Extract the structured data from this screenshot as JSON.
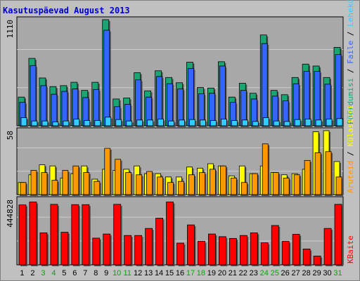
{
  "header": {
    "title_prefix": "Kasutuspäevad",
    "month": "August",
    "year": "2013"
  },
  "colors": {
    "frame_bg": "#c0c0c0",
    "panel_bg": "#a8a8a8",
    "grid": "#cccccc",
    "hits": "#1aa673",
    "files": "#3366ff",
    "pages": "#33ccff",
    "visits": "#ffff00",
    "sites": "#ff9900",
    "kbytes": "#ff0000",
    "weekend_label": "#00aa00",
    "weekday_label": "#000000"
  },
  "chart_data": [
    {
      "type": "bar",
      "panel": "hits-files-pages",
      "y_max_label": "1110",
      "ylim": [
        0,
        1110
      ],
      "right_labels": [
        {
          "text": "Pöördumisi",
          "color": "#1aa673"
        },
        {
          "text": "Faile",
          "color": "#3366ff"
        },
        {
          "text": "Lehekülgi",
          "color": "#33ccff"
        }
      ],
      "categories": [
        "1",
        "2",
        "3",
        "4",
        "5",
        "6",
        "7",
        "8",
        "9",
        "10",
        "11",
        "12",
        "13",
        "14",
        "15",
        "16",
        "17",
        "18",
        "19",
        "20",
        "21",
        "22",
        "23",
        "24",
        "25",
        "26",
        "27",
        "28",
        "29",
        "30",
        "31"
      ],
      "series": [
        {
          "name": "Pöördumisi",
          "values": [
            300,
            705,
            500,
            410,
            420,
            455,
            370,
            455,
            1110,
            280,
            290,
            555,
            365,
            575,
            505,
            450,
            665,
            400,
            395,
            670,
            300,
            445,
            340,
            950,
            370,
            325,
            505,
            645,
            625,
            505,
            820
          ]
        },
        {
          "name": "Faile",
          "values": [
            245,
            630,
            420,
            330,
            360,
            385,
            295,
            380,
            1000,
            200,
            225,
            480,
            300,
            515,
            440,
            385,
            600,
            335,
            340,
            625,
            245,
            370,
            280,
            860,
            310,
            260,
            440,
            570,
            570,
            435,
            745
          ]
        },
        {
          "name": "Lehekülgi",
          "values": [
            85,
            50,
            50,
            40,
            50,
            70,
            55,
            55,
            90,
            65,
            50,
            60,
            60,
            70,
            50,
            60,
            65,
            60,
            55,
            70,
            55,
            60,
            45,
            85,
            50,
            45,
            65,
            70,
            60,
            70,
            75
          ]
        }
      ]
    },
    {
      "type": "bar",
      "panel": "visits-sites",
      "y_max_label": "58",
      "ylim": [
        0,
        58
      ],
      "right_labels": [
        {
          "text": "Aruteid",
          "color": "#ff9900"
        },
        {
          "text": "Külastusi",
          "color": "#ffff00"
        }
      ],
      "categories": [
        "1",
        "2",
        "3",
        "4",
        "5",
        "6",
        "7",
        "8",
        "9",
        "10",
        "11",
        "12",
        "13",
        "14",
        "15",
        "16",
        "17",
        "18",
        "19",
        "20",
        "21",
        "22",
        "23",
        "24",
        "25",
        "26",
        "27",
        "28",
        "29",
        "30",
        "31"
      ],
      "series": [
        {
          "name": "Külastusi",
          "values": [
            11,
            18,
            27,
            26,
            15,
            19,
            26,
            14,
            23,
            22,
            23,
            26,
            19,
            19,
            16,
            16,
            25,
            24,
            28,
            26,
            17,
            26,
            19,
            26,
            20,
            18,
            19,
            23,
            57,
            58,
            30
          ]
        },
        {
          "name": "Aruteid",
          "values": [
            11,
            22,
            20,
            13,
            22,
            26,
            20,
            12,
            42,
            32,
            20,
            18,
            21,
            16,
            11,
            12,
            18,
            20,
            23,
            26,
            15,
            11,
            19,
            46,
            20,
            15,
            18,
            31,
            38,
            39,
            16
          ]
        }
      ]
    },
    {
      "type": "bar",
      "panel": "kbytes",
      "y_max_label": "444828",
      "ylim": [
        0,
        444828
      ],
      "right_labels": [
        {
          "text": "KBaite",
          "color": "#ff0000"
        }
      ],
      "categories": [
        "1",
        "2",
        "3",
        "4",
        "5",
        "6",
        "7",
        "8",
        "9",
        "10",
        "11",
        "12",
        "13",
        "14",
        "15",
        "16",
        "17",
        "18",
        "19",
        "20",
        "21",
        "22",
        "23",
        "24",
        "25",
        "26",
        "27",
        "28",
        "29",
        "30",
        "31"
      ],
      "series": [
        {
          "name": "KBaite",
          "values": [
            408000,
            428000,
            218000,
            412000,
            222000,
            410000,
            410000,
            182000,
            210000,
            412000,
            200000,
            200000,
            248000,
            318000,
            428000,
            148000,
            272000,
            160000,
            210000,
            192000,
            180000,
            200000,
            218000,
            150000,
            268000,
            160000,
            208000,
            108000,
            60000,
            248000,
            412000
          ]
        }
      ]
    }
  ],
  "x_axis": {
    "labels": [
      "1",
      "2",
      "3",
      "4",
      "5",
      "6",
      "7",
      "8",
      "9",
      "10",
      "11",
      "12",
      "13",
      "14",
      "15",
      "16",
      "17",
      "18",
      "19",
      "20",
      "21",
      "22",
      "23",
      "24",
      "25",
      "26",
      "27",
      "28",
      "29",
      "30",
      "31"
    ],
    "weekend": [
      3,
      4,
      10,
      11,
      17,
      18,
      24,
      25,
      31
    ]
  }
}
